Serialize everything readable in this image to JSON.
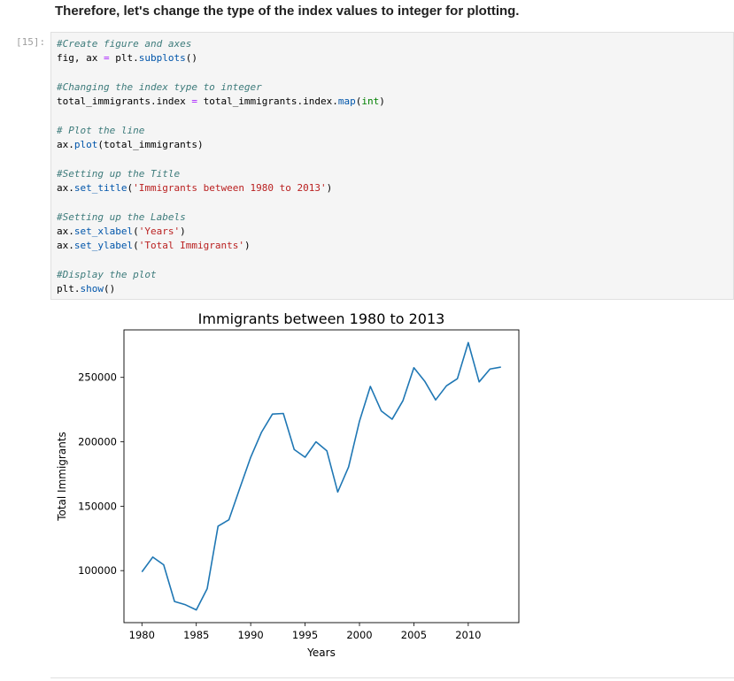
{
  "markdown_text": "Therefore, let's change the type of the index values to integer for plotting.",
  "cell": {
    "prompt": "[15]:",
    "code_lines": [
      {
        "comment": "#Create figure and axes"
      },
      {
        "text": "fig, ax = plt.subplots()"
      },
      {
        "text": ""
      },
      {
        "comment": "#Changing the index type to integer"
      },
      {
        "text": "total_immigrants.index = total_immigrants.index.map(int)"
      },
      {
        "text": ""
      },
      {
        "comment": "# Plot the line"
      },
      {
        "text": "ax.plot(total_immigrants)"
      },
      {
        "text": ""
      },
      {
        "comment": "#Setting up the Title"
      },
      {
        "text": "ax.set_title('Immigrants between 1980 to 2013')"
      },
      {
        "text": ""
      },
      {
        "comment": "#Setting up the Labels"
      },
      {
        "text": "ax.set_xlabel('Years')"
      },
      {
        "text": "ax.set_ylabel('Total Immigrants')"
      },
      {
        "text": ""
      },
      {
        "comment": "#Display the plot"
      },
      {
        "text": "plt.show()"
      }
    ]
  },
  "chart_data": {
    "type": "line",
    "title": "Immigrants between 1980 to 2013",
    "xlabel": "Years",
    "ylabel": "Total Immigrants",
    "x": [
      1980,
      1981,
      1982,
      1983,
      1984,
      1985,
      1986,
      1987,
      1988,
      1989,
      1990,
      1991,
      1992,
      1993,
      1994,
      1995,
      1996,
      1997,
      1998,
      1999,
      2000,
      2001,
      2002,
      2003,
      2004,
      2005,
      2006,
      2007,
      2008,
      2009,
      2010,
      2011,
      2012,
      2013
    ],
    "y": [
      99000,
      110500,
      104500,
      76000,
      73500,
      69500,
      86000,
      134500,
      139500,
      164000,
      188000,
      207500,
      221500,
      222000,
      194000,
      188000,
      200000,
      193000,
      161000,
      180500,
      216000,
      243000,
      224000,
      217500,
      232000,
      257500,
      247000,
      232500,
      243500,
      249000,
      277000,
      246500,
      256500,
      258000
    ],
    "xticks": [
      1980,
      1985,
      1990,
      1995,
      2000,
      2005,
      2010
    ],
    "yticks": [
      100000,
      150000,
      200000,
      250000
    ],
    "xlim": [
      1978.35,
      2014.65
    ],
    "ylim": [
      59625,
      286875
    ],
    "line_color": "#1f77b4",
    "grid": false,
    "legend": false
  }
}
